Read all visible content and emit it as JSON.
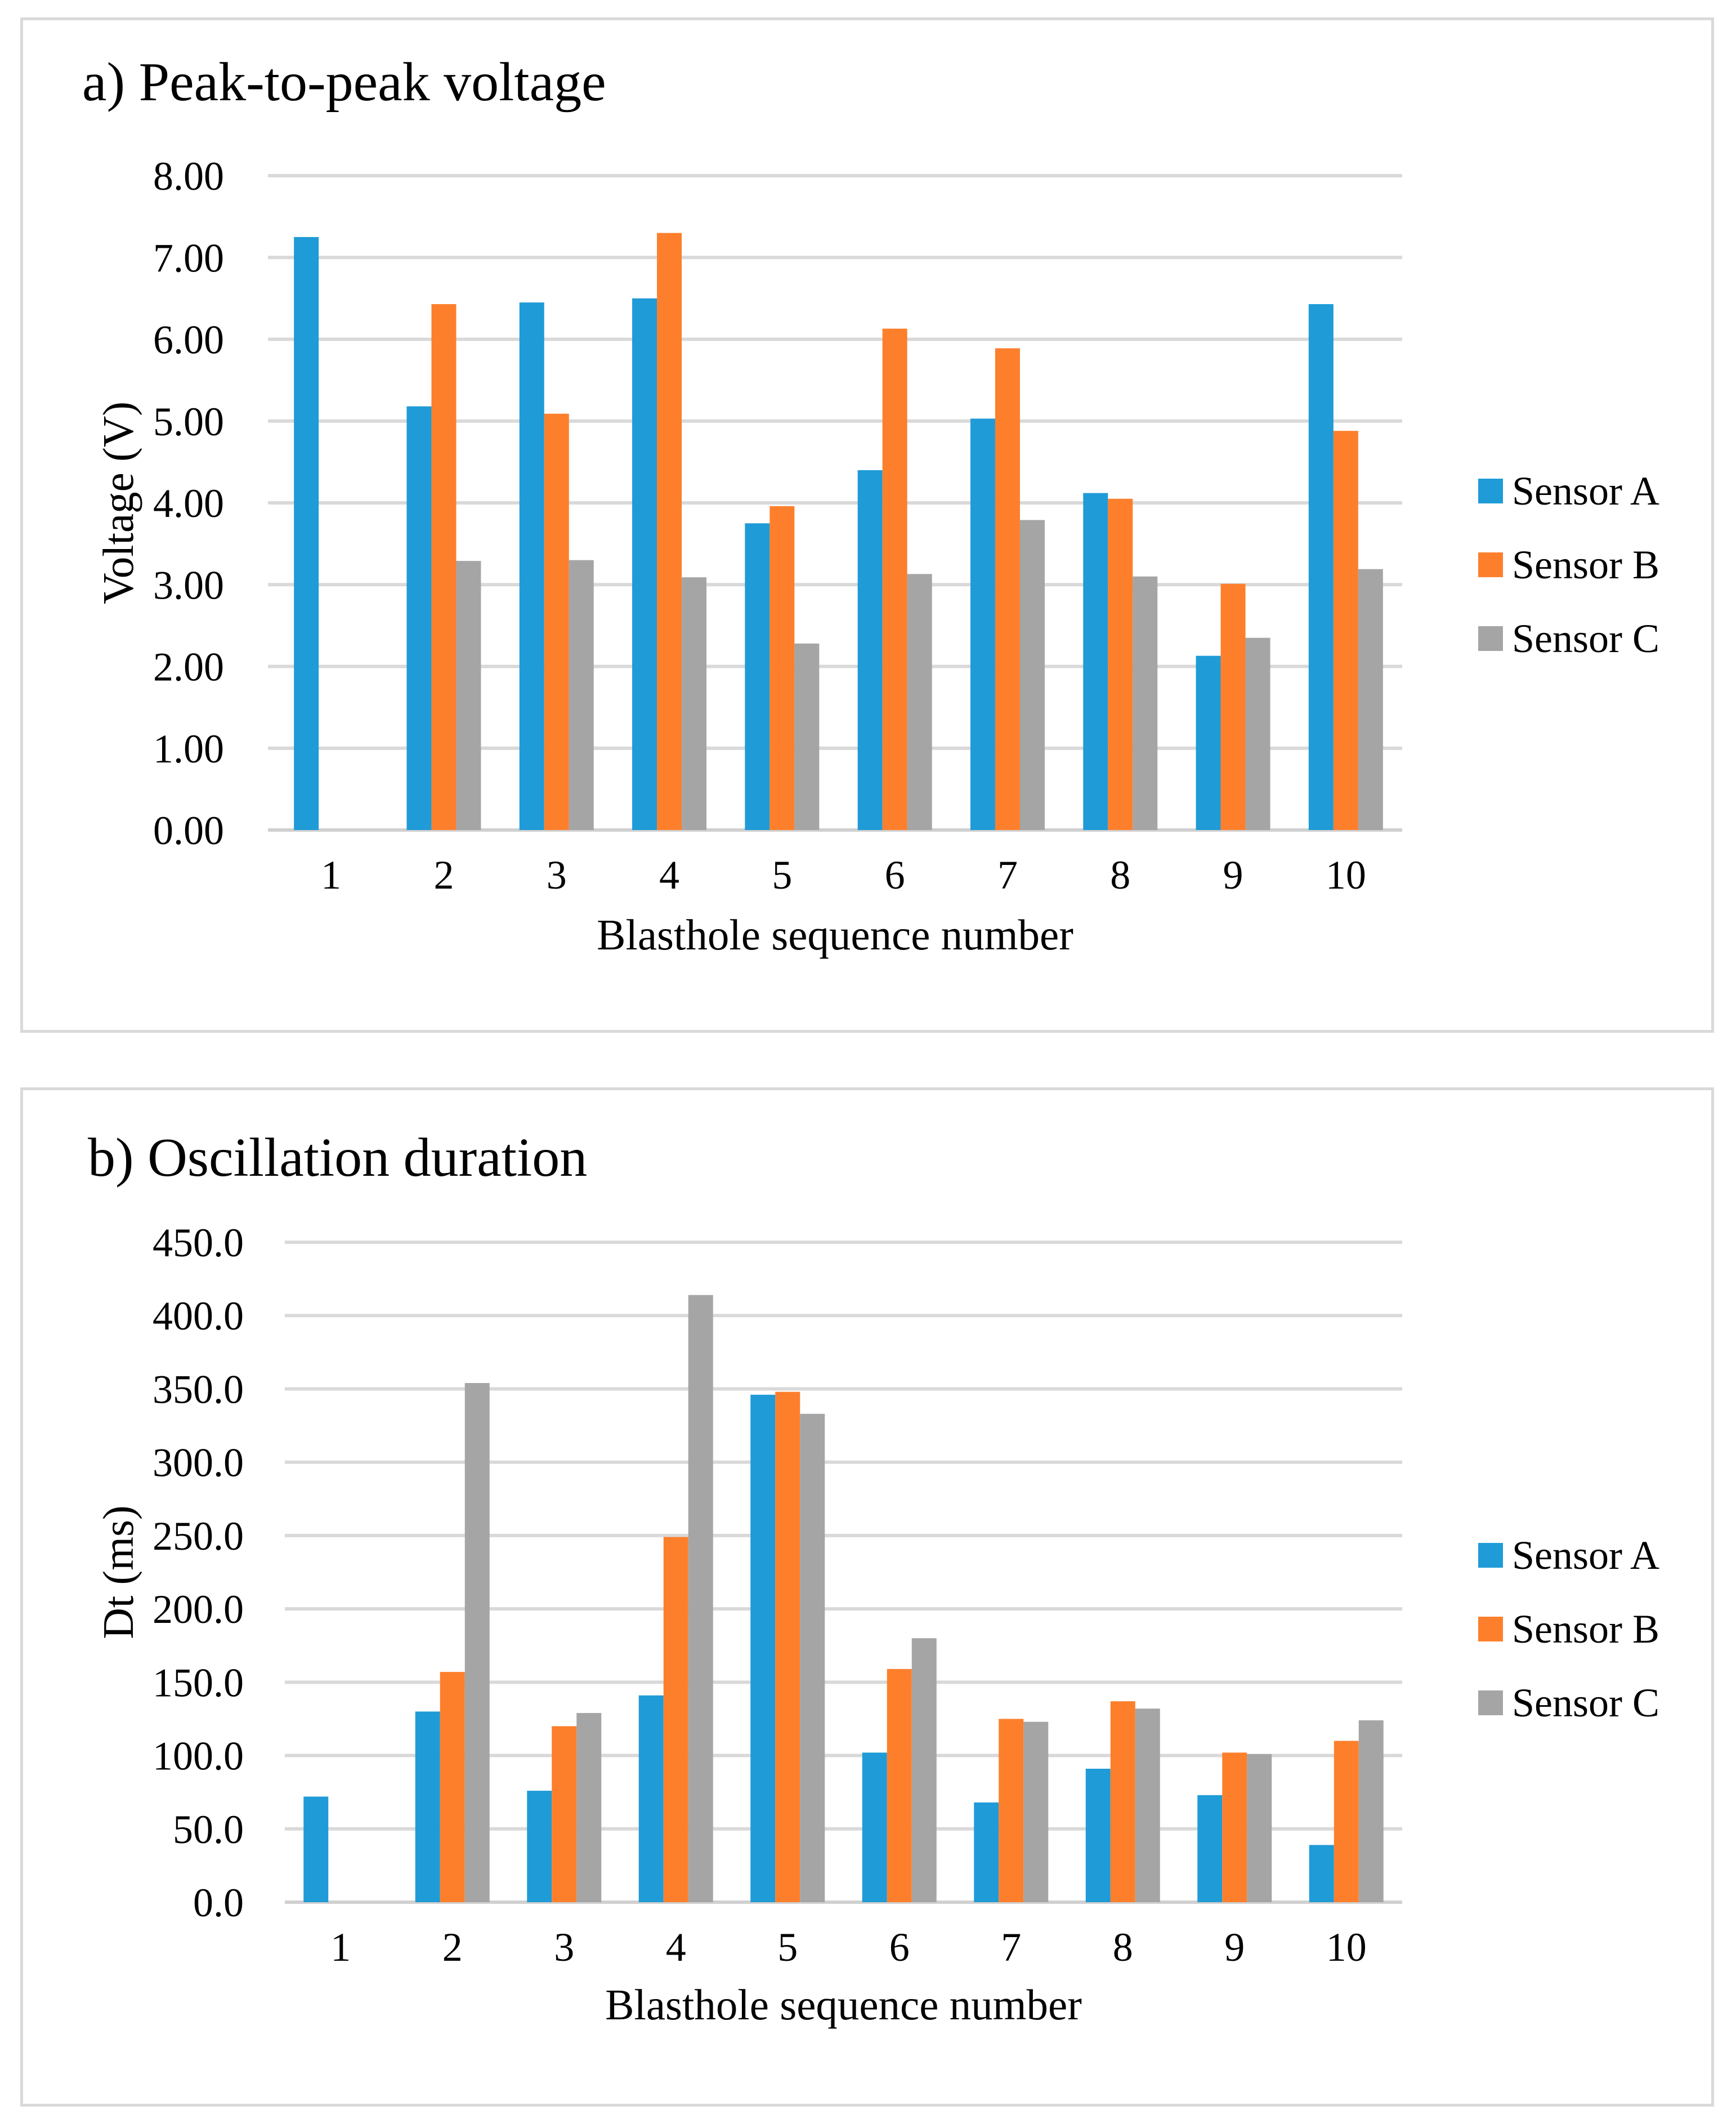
{
  "chart_data": [
    {
      "type": "bar",
      "title": "a) Peak-to-peak voltage",
      "xlabel": "Blasthole sequence number",
      "ylabel": "Voltage (V)",
      "categories": [
        "1",
        "2",
        "3",
        "4",
        "5",
        "6",
        "7",
        "8",
        "9",
        "10"
      ],
      "ylim": [
        0,
        8
      ],
      "yticks": [
        "0.00",
        "1.00",
        "2.00",
        "3.00",
        "4.00",
        "5.00",
        "6.00",
        "7.00",
        "8.00"
      ],
      "ytick_values": [
        0,
        1,
        2,
        3,
        4,
        5,
        6,
        7,
        8
      ],
      "grid": true,
      "legend_position": "right",
      "series": [
        {
          "name": "Sensor A",
          "color": "#1f9bd7",
          "values": [
            7.25,
            5.18,
            6.45,
            6.5,
            3.75,
            4.4,
            5.03,
            4.12,
            2.13,
            6.43
          ]
        },
        {
          "name": "Sensor B",
          "color": "#fd7f2c",
          "values": [
            null,
            6.43,
            5.09,
            7.3,
            3.96,
            6.13,
            5.89,
            4.05,
            3.01,
            4.88
          ]
        },
        {
          "name": "Sensor C",
          "color": "#a5a5a5",
          "values": [
            null,
            3.29,
            3.3,
            3.09,
            2.28,
            3.13,
            3.79,
            3.1,
            2.35,
            3.19
          ]
        }
      ]
    },
    {
      "type": "bar",
      "title": "b) Oscillation duration",
      "xlabel": "Blasthole sequence number",
      "ylabel": "Dt (ms)",
      "categories": [
        "1",
        "2",
        "3",
        "4",
        "5",
        "6",
        "7",
        "8",
        "9",
        "10"
      ],
      "ylim": [
        0,
        450
      ],
      "yticks": [
        "0.0",
        "50.0",
        "100.0",
        "150.0",
        "200.0",
        "250.0",
        "300.0",
        "350.0",
        "400.0",
        "450.0"
      ],
      "ytick_values": [
        0,
        50,
        100,
        150,
        200,
        250,
        300,
        350,
        400,
        450
      ],
      "grid": true,
      "legend_position": "right",
      "series": [
        {
          "name": "Sensor A",
          "color": "#1f9bd7",
          "values": [
            72,
            130,
            76,
            141,
            346,
            102,
            68,
            91,
            73,
            39
          ]
        },
        {
          "name": "Sensor B",
          "color": "#fd7f2c",
          "values": [
            null,
            157,
            120,
            249,
            348,
            159,
            125,
            137,
            102,
            110
          ]
        },
        {
          "name": "Sensor C",
          "color": "#a5a5a5",
          "values": [
            null,
            354,
            129,
            414,
            333,
            180,
            123,
            132,
            101,
            124
          ]
        }
      ]
    }
  ]
}
